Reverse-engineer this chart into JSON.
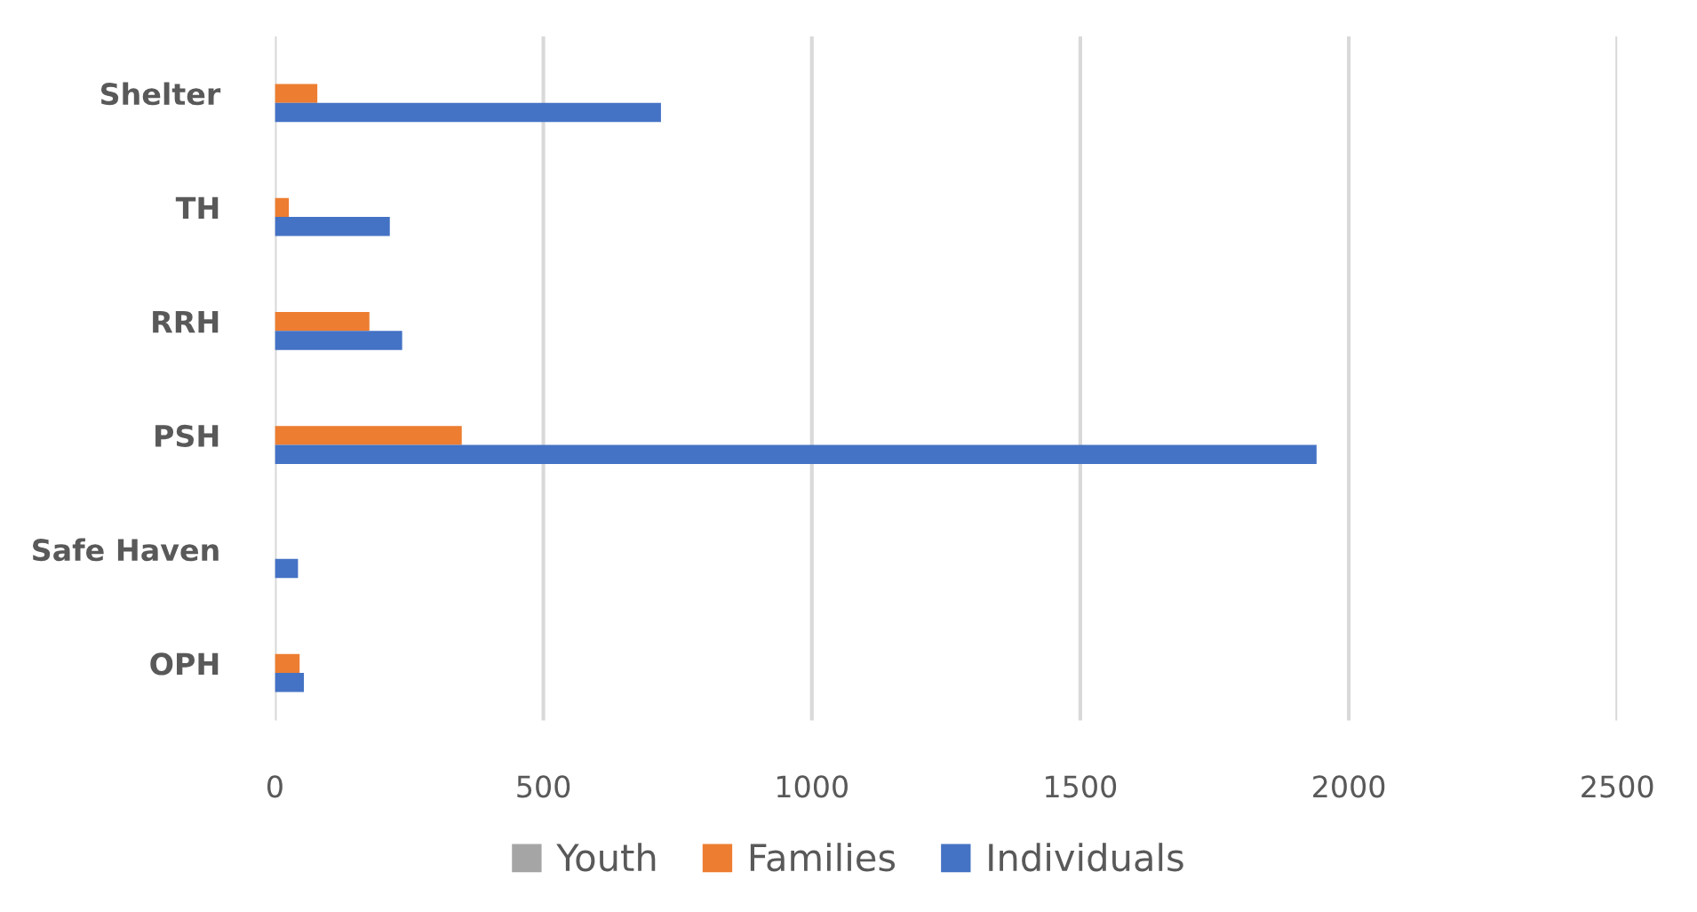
{
  "chart_data": {
    "type": "bar",
    "orientation": "horizontal",
    "categories": [
      "Shelter",
      "TH",
      "RRH",
      "PSH",
      "Safe Haven",
      "OPH"
    ],
    "series": [
      {
        "name": "Youth",
        "color": "#a5a5a5",
        "values": [
          null,
          null,
          null,
          null,
          null,
          null
        ]
      },
      {
        "name": "Families",
        "color": "#ed7d31",
        "values": [
          79,
          26,
          176,
          348,
          null,
          46
        ]
      },
      {
        "name": "Individuals",
        "color": "#4472c4",
        "values": [
          719,
          214,
          237,
          1940,
          43,
          54
        ]
      }
    ],
    "xlim": [
      0,
      2500
    ],
    "xticks": [
      0,
      500,
      1000,
      1500,
      2000,
      2500
    ],
    "grid": "x",
    "legend": "bottom"
  }
}
